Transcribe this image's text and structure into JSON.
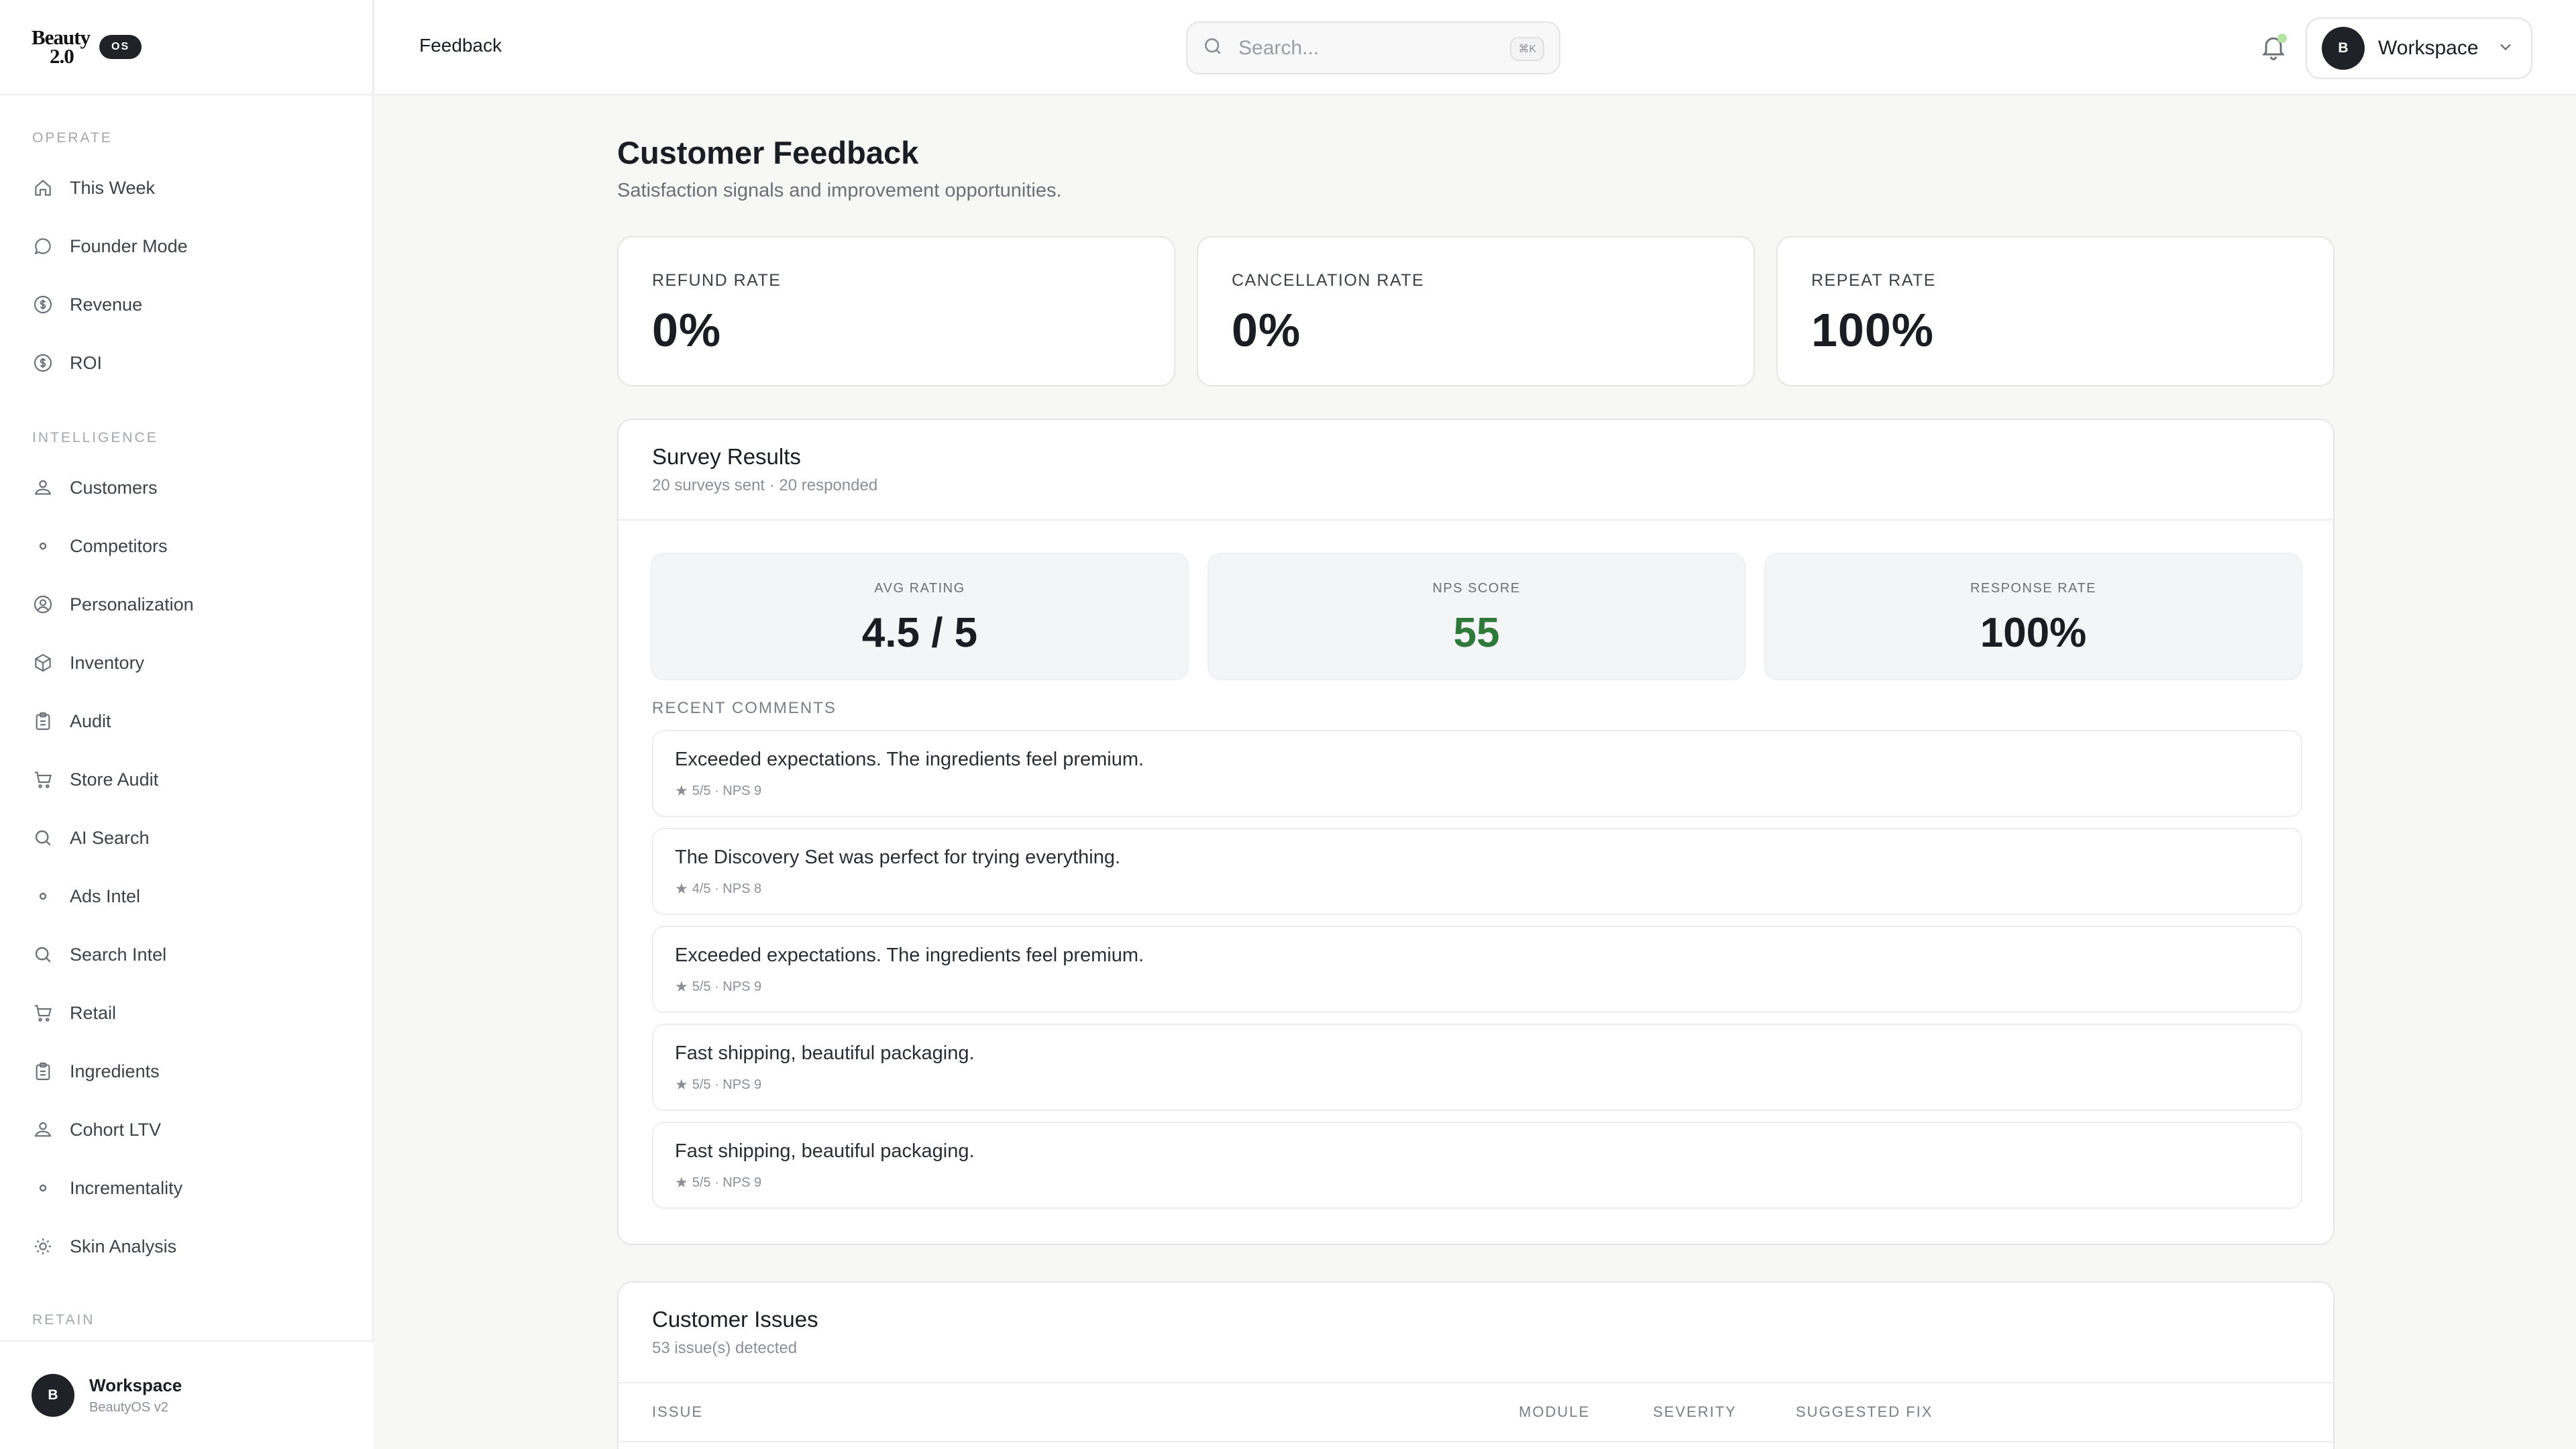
{
  "brand": {
    "logo_line1": "Beauty",
    "logo_line2": "2.0",
    "badge": "OS"
  },
  "sidebar": {
    "sections": [
      {
        "label": "OPERATE"
      },
      {
        "label": "INTELLIGENCE"
      },
      {
        "label": "RETAIN"
      }
    ],
    "items": [
      {
        "label": "This Week",
        "icon": "home-icon"
      },
      {
        "label": "Founder Mode",
        "icon": "chat-bubble-icon"
      },
      {
        "label": "Revenue",
        "icon": "dollar-circle-icon"
      },
      {
        "label": "ROI",
        "icon": "dollar-circle-icon"
      },
      {
        "label": "Customers",
        "icon": "users-icon"
      },
      {
        "label": "Competitors",
        "icon": "dot-icon"
      },
      {
        "label": "Personalization",
        "icon": "user-circle-icon"
      },
      {
        "label": "Inventory",
        "icon": "box-icon"
      },
      {
        "label": "Audit",
        "icon": "clipboard-icon"
      },
      {
        "label": "Store Audit",
        "icon": "cart-icon"
      },
      {
        "label": "AI Search",
        "icon": "search-icon"
      },
      {
        "label": "Ads Intel",
        "icon": "dot-icon"
      },
      {
        "label": "Search Intel",
        "icon": "search-icon"
      },
      {
        "label": "Retail",
        "icon": "cart-icon"
      },
      {
        "label": "Ingredients",
        "icon": "clipboard-icon"
      },
      {
        "label": "Cohort LTV",
        "icon": "users-icon"
      },
      {
        "label": "Incrementality",
        "icon": "dot-icon"
      },
      {
        "label": "Skin Analysis",
        "icon": "sun-icon"
      }
    ],
    "footer": {
      "avatar": "B",
      "name": "Workspace",
      "sub": "BeautyOS v2"
    }
  },
  "header": {
    "title": "Feedback",
    "search_placeholder": "Search...",
    "search_shortcut": "⌘K",
    "workspace_avatar": "B",
    "workspace_label": "Workspace"
  },
  "page": {
    "title": "Customer Feedback",
    "subtitle": "Satisfaction signals and improvement opportunities."
  },
  "stats": [
    {
      "label": "REFUND RATE",
      "value": "0%"
    },
    {
      "label": "CANCELLATION RATE",
      "value": "0%"
    },
    {
      "label": "REPEAT RATE",
      "value": "100%"
    }
  ],
  "survey": {
    "title": "Survey Results",
    "subtitle": "20 surveys sent · 20 responded",
    "metrics": [
      {
        "label": "AVG RATING",
        "value": "4.5 / 5"
      },
      {
        "label": "NPS SCORE",
        "value": "55"
      },
      {
        "label": "RESPONSE RATE",
        "value": "100%"
      }
    ],
    "comments_label": "RECENT COMMENTS",
    "comments": [
      {
        "text": "Exceeded expectations. The ingredients feel premium.",
        "meta": "5/5 · NPS 9"
      },
      {
        "text": "The Discovery Set was perfect for trying everything.",
        "meta": "4/5 · NPS 8"
      },
      {
        "text": "Exceeded expectations. The ingredients feel premium.",
        "meta": "5/5 · NPS 9"
      },
      {
        "text": "Fast shipping, beautiful packaging.",
        "meta": "5/5 · NPS 9"
      },
      {
        "text": "Fast shipping, beautiful packaging.",
        "meta": "5/5 · NPS 9"
      }
    ]
  },
  "issues": {
    "title": "Customer Issues",
    "subtitle": "53 issue(s) detected",
    "columns": [
      "ISSUE",
      "MODULE",
      "SEVERITY",
      "SUGGESTED FIX"
    ]
  },
  "colors": {
    "accent_green": "#2f7a3a",
    "dark": "#1f2329",
    "notification_dot": "#b5e3a3"
  }
}
